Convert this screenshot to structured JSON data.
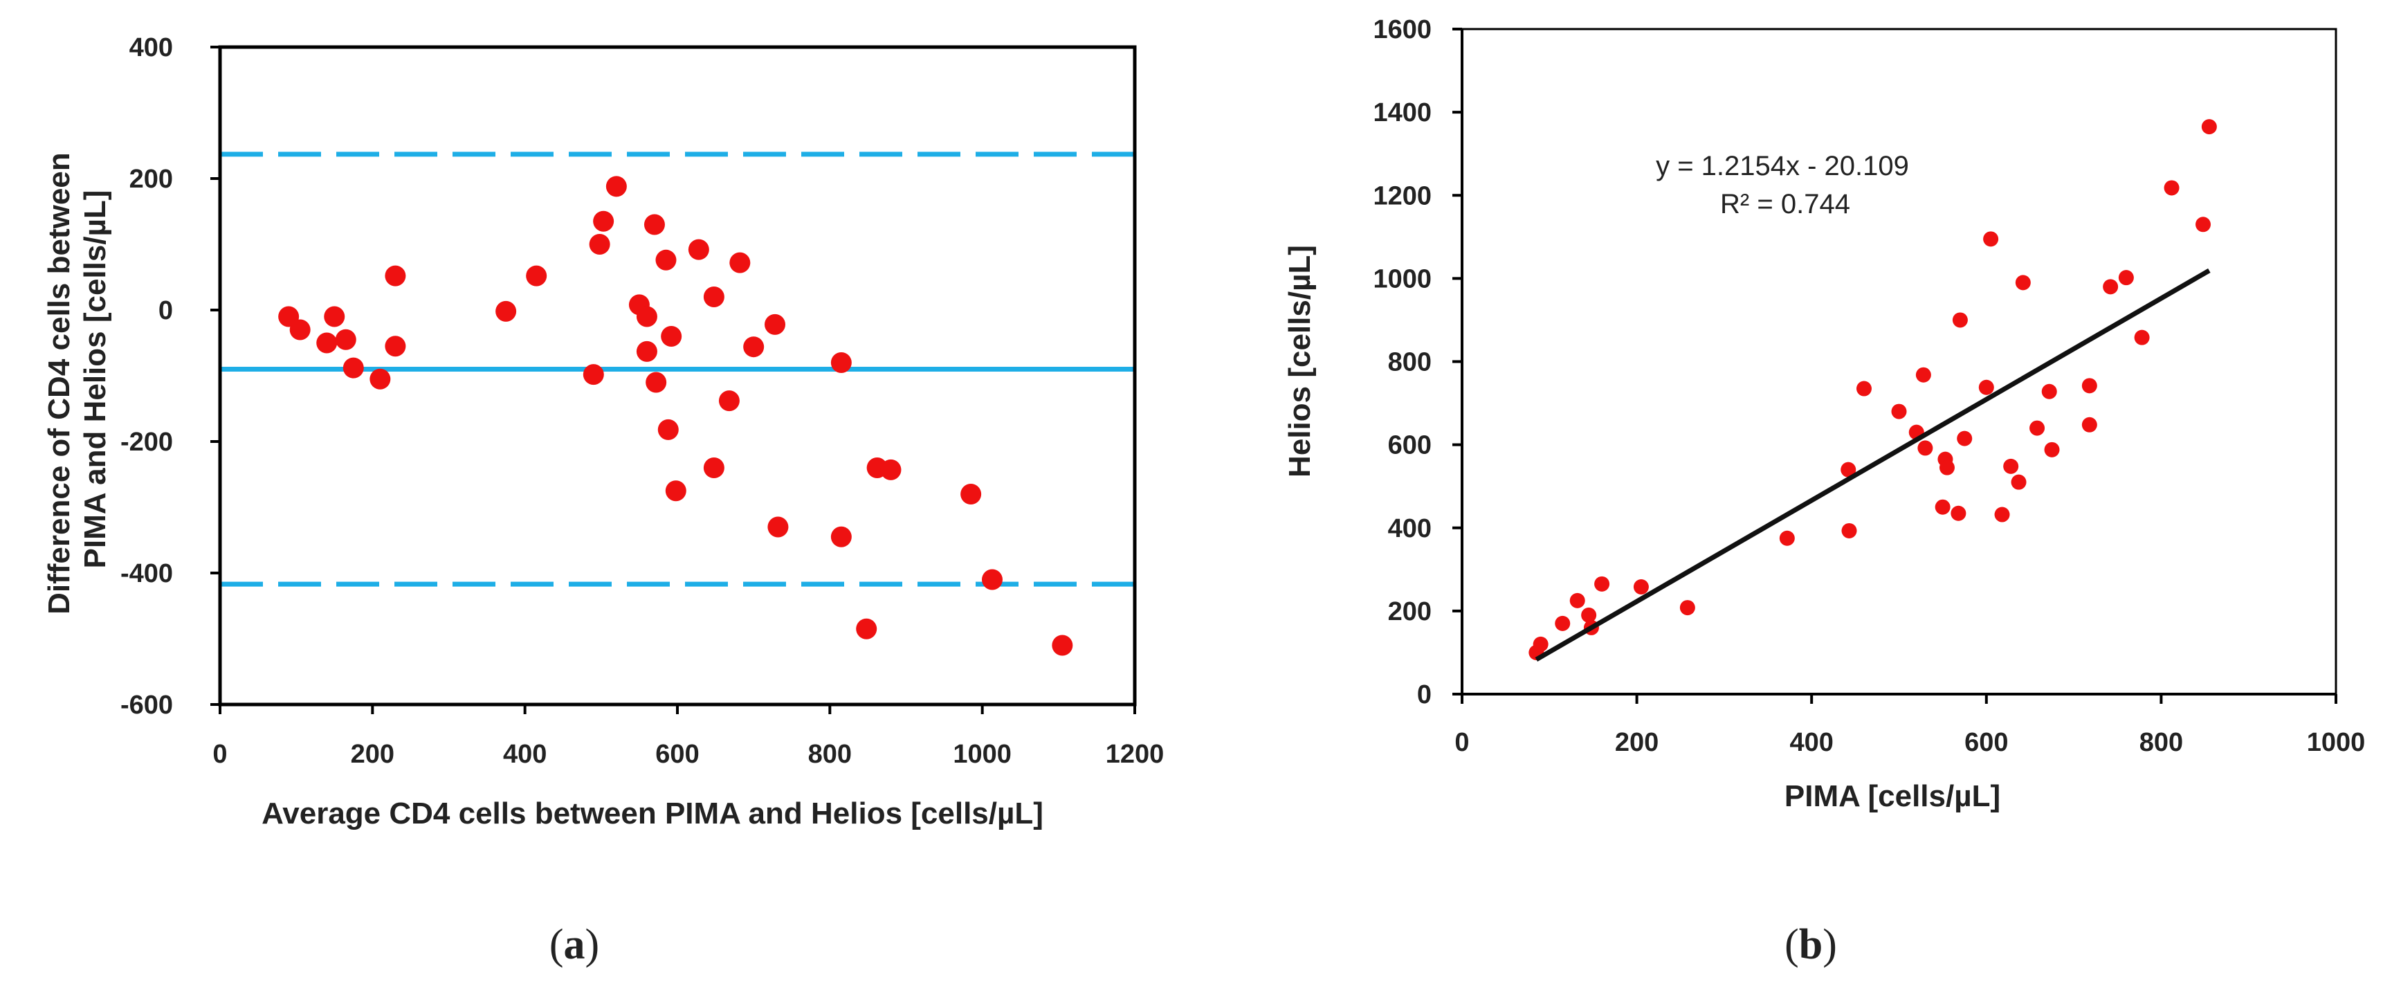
{
  "chart_data": [
    {
      "type": "scatter",
      "panel_label": "a",
      "title": "",
      "xlabel": "Average CD4 cells between PIMA  and Helios [cells/µL]",
      "ylabel_lines": [
        "Difference of CD4 cells between",
        "PIMA  and Helios [cells/µL]"
      ],
      "xlim": [
        0,
        1200
      ],
      "ylim": [
        -600,
        400
      ],
      "xticks": [
        0,
        200,
        400,
        600,
        800,
        1000,
        1200
      ],
      "yticks": [
        -600,
        -400,
        -200,
        0,
        200,
        400
      ],
      "grid": false,
      "marker_color": "#ee1111",
      "ref_line_color": "#1eaee6",
      "reference_lines": [
        {
          "name": "mean difference",
          "y": -90,
          "style": "solid"
        },
        {
          "name": "upper limit of agreement",
          "y": 237,
          "style": "dashed"
        },
        {
          "name": "lower limit of agreement",
          "y": -417,
          "style": "dashed"
        }
      ],
      "points": [
        [
          90,
          -10
        ],
        [
          105,
          -30
        ],
        [
          140,
          -50
        ],
        [
          150,
          -10
        ],
        [
          165,
          -45
        ],
        [
          175,
          -88
        ],
        [
          210,
          -105
        ],
        [
          230,
          -55
        ],
        [
          230,
          52
        ],
        [
          375,
          -2
        ],
        [
          415,
          52
        ],
        [
          490,
          -98
        ],
        [
          498,
          100
        ],
        [
          503,
          135
        ],
        [
          520,
          188
        ],
        [
          550,
          8
        ],
        [
          560,
          -10
        ],
        [
          560,
          -63
        ],
        [
          570,
          130
        ],
        [
          572,
          -110
        ],
        [
          585,
          76
        ],
        [
          588,
          -182
        ],
        [
          592,
          -40
        ],
        [
          598,
          -275
        ],
        [
          628,
          92
        ],
        [
          648,
          20
        ],
        [
          648,
          -240
        ],
        [
          668,
          -138
        ],
        [
          682,
          72
        ],
        [
          700,
          -56
        ],
        [
          728,
          -22
        ],
        [
          732,
          -330
        ],
        [
          815,
          -80
        ],
        [
          815,
          -345
        ],
        [
          848,
          -485
        ],
        [
          862,
          -240
        ],
        [
          880,
          -243
        ],
        [
          985,
          -280
        ],
        [
          1013,
          -410
        ],
        [
          1105,
          -510
        ]
      ]
    },
    {
      "type": "scatter",
      "panel_label": "b",
      "title": "",
      "xlabel": "PIMA  [cells/µL]",
      "ylabel": "Helios [cells/µL]",
      "xlim": [
        0,
        1000
      ],
      "ylim": [
        0,
        1600
      ],
      "xticks": [
        0,
        200,
        400,
        600,
        800,
        1000
      ],
      "yticks": [
        0,
        200,
        400,
        600,
        800,
        1000,
        1200,
        1400,
        1600
      ],
      "grid": false,
      "marker_color": "#ee1111",
      "trendline": {
        "slope": 1.2154,
        "intercept": -20.109,
        "x_range": [
          85,
          855
        ],
        "color": "#111111"
      },
      "annotations": [
        "y = 1.2154x - 20.109",
        "R² = 0.744"
      ],
      "points": [
        [
          85,
          100
        ],
        [
          90,
          120
        ],
        [
          115,
          170
        ],
        [
          132,
          225
        ],
        [
          145,
          190
        ],
        [
          148,
          160
        ],
        [
          160,
          265
        ],
        [
          205,
          258
        ],
        [
          258,
          208
        ],
        [
          372,
          375
        ],
        [
          442,
          540
        ],
        [
          443,
          393
        ],
        [
          460,
          735
        ],
        [
          500,
          680
        ],
        [
          520,
          630
        ],
        [
          528,
          768
        ],
        [
          530,
          592
        ],
        [
          550,
          450
        ],
        [
          553,
          565
        ],
        [
          555,
          545
        ],
        [
          568,
          435
        ],
        [
          570,
          900
        ],
        [
          575,
          615
        ],
        [
          600,
          738
        ],
        [
          605,
          1095
        ],
        [
          618,
          432
        ],
        [
          628,
          548
        ],
        [
          637,
          510
        ],
        [
          642,
          990
        ],
        [
          658,
          640
        ],
        [
          672,
          728
        ],
        [
          675,
          588
        ],
        [
          718,
          742
        ],
        [
          718,
          648
        ],
        [
          742,
          980
        ],
        [
          760,
          1002
        ],
        [
          778,
          858
        ],
        [
          812,
          1218
        ],
        [
          848,
          1130
        ],
        [
          855,
          1365
        ]
      ]
    }
  ]
}
